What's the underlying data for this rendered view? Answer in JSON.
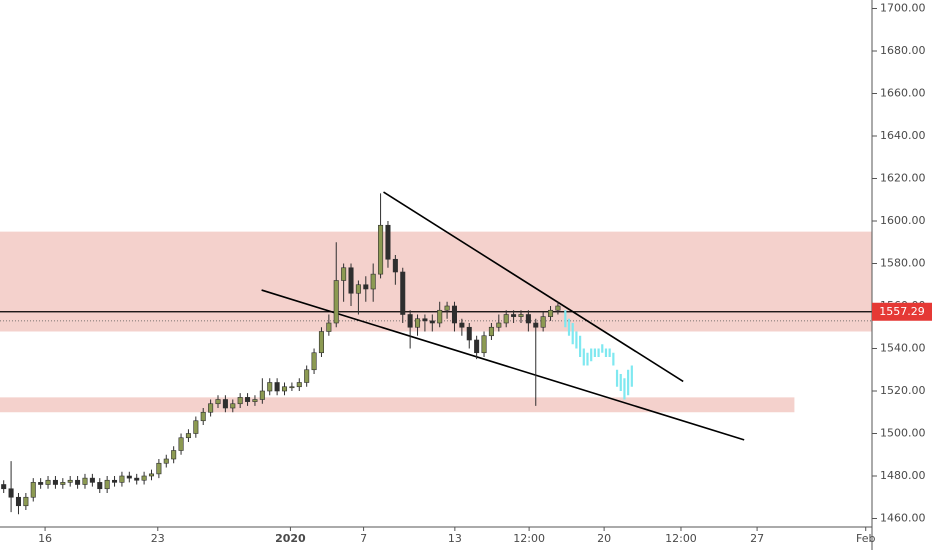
{
  "chart_data": {
    "type": "candlestick",
    "xlim": [
      0,
      236
    ],
    "ylim": [
      1456,
      1704
    ],
    "xticks": [
      {
        "value": 12.2,
        "label": "16"
      },
      {
        "value": 42.7,
        "label": "23"
      },
      {
        "value": 78.6,
        "label": "2020"
      },
      {
        "value": 98.4,
        "label": "7"
      },
      {
        "value": 123.1,
        "label": "13"
      },
      {
        "value": 143.2,
        "label": "12:00"
      },
      {
        "value": 163.5,
        "label": "20"
      },
      {
        "value": 184.3,
        "label": "12:00"
      },
      {
        "value": 204.9,
        "label": "27"
      },
      {
        "value": 234.3,
        "label": "Feb"
      }
    ],
    "yticks": [
      {
        "value": 1460,
        "label": "1460.00"
      },
      {
        "value": 1480,
        "label": "1480.00"
      },
      {
        "value": 1500,
        "label": "1500.00"
      },
      {
        "value": 1520,
        "label": "1520.00"
      },
      {
        "value": 1540,
        "label": "1540.00"
      },
      {
        "value": 1560,
        "label": "1560.00"
      },
      {
        "value": 1580,
        "label": "1580.00"
      },
      {
        "value": 1600,
        "label": "1600.00"
      },
      {
        "value": 1620,
        "label": "1620.00"
      },
      {
        "value": 1640,
        "label": "1640.00"
      },
      {
        "value": 1660,
        "label": "1660.00"
      },
      {
        "value": 1680,
        "label": "1680.00"
      },
      {
        "value": 1700,
        "label": "1700.00"
      }
    ],
    "zones": [
      {
        "low": 1548,
        "high": 1595,
        "x": [
          0,
          236
        ],
        "color": "#f2c9c3"
      },
      {
        "low": 1510,
        "high": 1517,
        "x": [
          0,
          215
        ],
        "color": "#f2c9c3"
      }
    ],
    "trendlines": [
      {
        "x": [
          103.8,
          184.9
        ],
        "y": [
          1613.6,
          1524.5
        ],
        "color": "#000000"
      },
      {
        "x": [
          70.8,
          201.4
        ],
        "y": [
          1567.5,
          1497
        ],
        "color": "#000000"
      }
    ],
    "last_price": 1557.29,
    "dotted_price": 1553,
    "candles": {
      "up_color": "#8c9a52",
      "down_color": "#2e2e2e",
      "x": [
        1,
        3,
        5,
        7,
        9,
        11,
        13,
        15,
        17,
        19,
        21,
        23,
        25,
        27,
        29,
        31,
        33,
        35,
        37,
        39,
        41,
        43,
        45,
        47,
        49,
        51,
        53,
        55,
        57,
        59,
        61,
        63,
        65,
        67,
        69,
        71,
        73,
        75,
        77,
        79,
        81,
        83,
        85,
        87,
        89,
        91,
        93,
        95,
        97,
        99,
        101,
        103,
        105,
        107,
        109,
        111,
        113,
        115,
        117,
        119,
        121,
        123,
        125,
        127,
        129,
        131,
        133,
        135,
        137,
        139,
        141,
        143,
        145,
        147,
        149,
        151
      ],
      "open": [
        1476,
        1474,
        1470,
        1466,
        1470,
        1477,
        1476,
        1478,
        1476,
        1477,
        1478,
        1476,
        1479,
        1477,
        1474,
        1478,
        1477,
        1480,
        1479,
        1478,
        1480,
        1481,
        1486,
        1488,
        1492,
        1498,
        1500,
        1506,
        1510,
        1514,
        1516,
        1512,
        1514,
        1517,
        1515,
        1516,
        1520,
        1524,
        1520,
        1522,
        1522,
        1524,
        1530,
        1538,
        1548,
        1552,
        1572,
        1578,
        1566,
        1570,
        1568,
        1575,
        1598,
        1582,
        1576,
        1556,
        1550,
        1554,
        1553,
        1552,
        1558,
        1560,
        1552,
        1550,
        1544,
        1538,
        1546,
        1550,
        1552,
        1556,
        1555,
        1556,
        1552,
        1550,
        1555,
        1558
      ],
      "high": [
        1478,
        1487,
        1472,
        1472,
        1479,
        1479,
        1480,
        1480,
        1479,
        1480,
        1480,
        1481,
        1481,
        1479,
        1480,
        1480,
        1482,
        1482,
        1481,
        1482,
        1483,
        1488,
        1490,
        1494,
        1500,
        1502,
        1508,
        1512,
        1516,
        1518,
        1518,
        1516,
        1519,
        1519,
        1518,
        1526,
        1526,
        1526,
        1524,
        1524,
        1526,
        1532,
        1540,
        1550,
        1556,
        1590,
        1580,
        1580,
        1572,
        1574,
        1580,
        1613,
        1600,
        1584,
        1578,
        1558,
        1556,
        1556,
        1556,
        1562,
        1562,
        1562,
        1554,
        1552,
        1546,
        1548,
        1552,
        1556,
        1558,
        1558,
        1558,
        1558,
        1554,
        1557,
        1560,
        1562
      ],
      "low": [
        1472,
        1463,
        1462,
        1464,
        1468,
        1474,
        1474,
        1474,
        1474,
        1475,
        1474,
        1474,
        1475,
        1472,
        1472,
        1475,
        1475,
        1477,
        1476,
        1476,
        1478,
        1479,
        1484,
        1486,
        1490,
        1496,
        1498,
        1504,
        1508,
        1512,
        1510,
        1510,
        1512,
        1513,
        1513,
        1514,
        1518,
        1518,
        1518,
        1520,
        1520,
        1522,
        1528,
        1536,
        1546,
        1550,
        1562,
        1560,
        1556,
        1562,
        1562,
        1573,
        1578,
        1570,
        1552,
        1540,
        1546,
        1548,
        1548,
        1550,
        1554,
        1548,
        1546,
        1540,
        1535,
        1536,
        1544,
        1548,
        1550,
        1552,
        1552,
        1548,
        1513,
        1548,
        1553,
        1556
      ],
      "close": [
        1474,
        1470,
        1466,
        1470,
        1477,
        1476,
        1478,
        1476,
        1477,
        1478,
        1476,
        1479,
        1477,
        1474,
        1478,
        1477,
        1480,
        1479,
        1478,
        1480,
        1481,
        1486,
        1488,
        1492,
        1498,
        1500,
        1506,
        1510,
        1514,
        1516,
        1512,
        1514,
        1517,
        1515,
        1516,
        1520,
        1524,
        1520,
        1522,
        1522,
        1524,
        1530,
        1538,
        1548,
        1552,
        1572,
        1578,
        1566,
        1570,
        1568,
        1575,
        1598,
        1582,
        1576,
        1556,
        1550,
        1554,
        1553,
        1552,
        1558,
        1560,
        1552,
        1550,
        1544,
        1538,
        1546,
        1550,
        1552,
        1556,
        1555,
        1556,
        1552,
        1550,
        1555,
        1558,
        1560
      ]
    },
    "projection": {
      "color": "#7fe8f0",
      "x": [
        153,
        154,
        155,
        156,
        157,
        158,
        159,
        160,
        161,
        162,
        163,
        164,
        165,
        166,
        167,
        168,
        169,
        170,
        171
      ],
      "high": [
        1558,
        1554,
        1552,
        1548,
        1546,
        1540,
        1538,
        1540,
        1540,
        1540,
        1542,
        1540,
        1540,
        1538,
        1530,
        1528,
        1526,
        1530,
        1532
      ],
      "low": [
        1550,
        1546,
        1542,
        1540,
        1536,
        1532,
        1532,
        1534,
        1536,
        1536,
        1538,
        1536,
        1536,
        1532,
        1522,
        1520,
        1516,
        1518,
        1522
      ]
    }
  }
}
